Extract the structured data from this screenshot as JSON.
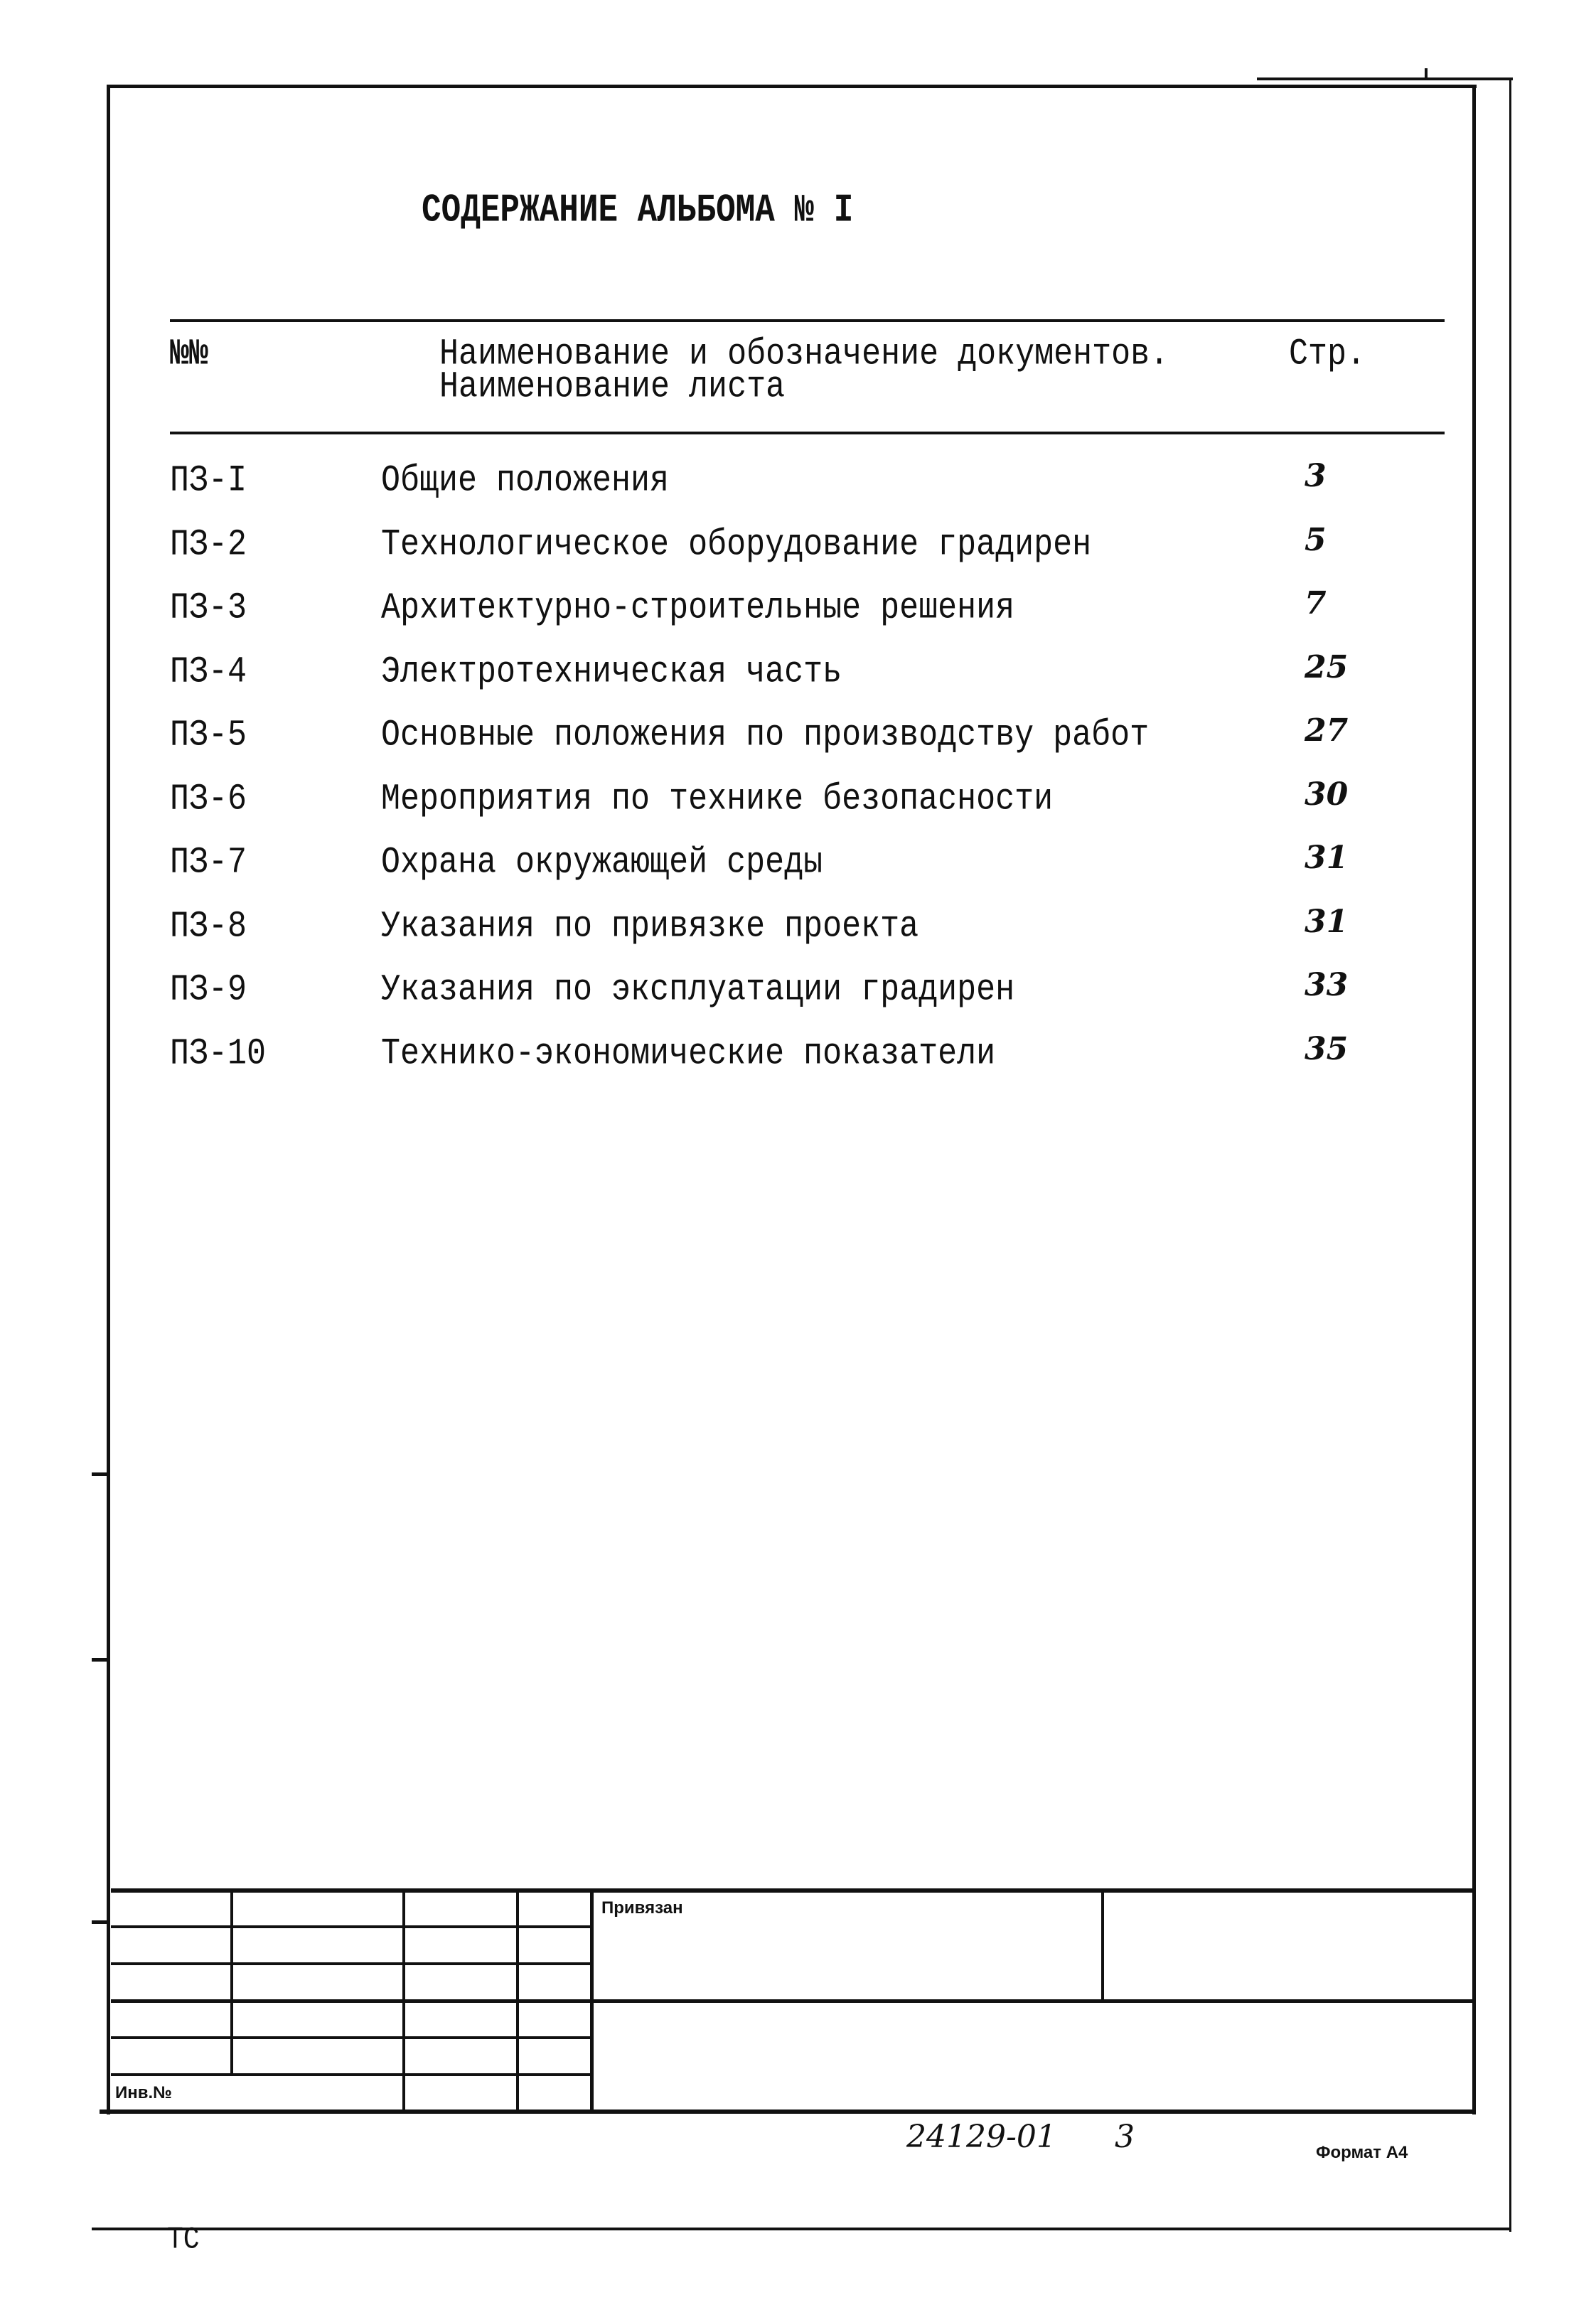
{
  "document": {
    "title": "СОДЕРЖАНИЕ АЛЬБОМА № I",
    "table_header": {
      "number": "№№",
      "name_line1": "Наименование и обозначение документов.",
      "name_line2": "Наименование листа",
      "page": "Стр."
    },
    "rows": [
      {
        "code": "ПЗ-I",
        "name": "Общие положения",
        "page": "3"
      },
      {
        "code": "ПЗ-2",
        "name": "Технологическое оборудование градирен",
        "page": "5"
      },
      {
        "code": "ПЗ-3",
        "name": "Архитектурно-строительные решения",
        "page": "7"
      },
      {
        "code": "ПЗ-4",
        "name": "Электротехническая часть",
        "page": "25"
      },
      {
        "code": "ПЗ-5",
        "name": "Основные положения по производству работ",
        "page": "27"
      },
      {
        "code": "ПЗ-6",
        "name": "Мероприятия по технике безопасности",
        "page": "30"
      },
      {
        "code": "ПЗ-7",
        "name": "Охрана окружающей среды",
        "page": "31"
      },
      {
        "code": "ПЗ-8",
        "name": "Указания по привязке проекта",
        "page": "31"
      },
      {
        "code": "ПЗ-9",
        "name": "Указания по эксплуатации градирен",
        "page": "33"
      },
      {
        "code": "ПЗ-10",
        "name": "Технико-экономические показатели",
        "page": "35"
      }
    ]
  },
  "title_block": {
    "linked_label": "Привязан",
    "inventory_label": "Инв.№"
  },
  "footer": {
    "doc_number": "24129-01",
    "sheet": "3",
    "format": "Формат А4",
    "mark": "ТС"
  }
}
